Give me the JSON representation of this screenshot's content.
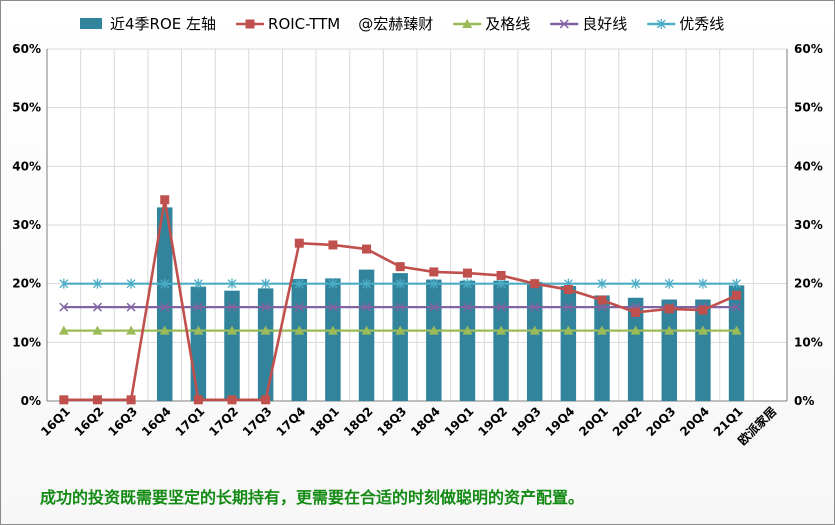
{
  "chart_data": {
    "type": "bar",
    "categories": [
      "16Q1",
      "16Q2",
      "16Q3",
      "16Q4",
      "17Q1",
      "17Q2",
      "17Q3",
      "17Q4",
      "18Q1",
      "18Q2",
      "18Q3",
      "18Q4",
      "19Q1",
      "19Q2",
      "19Q3",
      "19Q4",
      "20Q1",
      "20Q2",
      "20Q3",
      "20Q4",
      "21Q1",
      "欧派家居"
    ],
    "series": [
      {
        "name": "近4季ROE 左轴",
        "type": "bar",
        "color": "#31849b",
        "values": [
          null,
          null,
          null,
          33.0,
          19.5,
          18.8,
          19.2,
          20.8,
          20.9,
          22.4,
          21.8,
          20.7,
          20.5,
          20.5,
          20.3,
          19.6,
          18.0,
          17.6,
          17.3,
          17.3,
          19.7,
          null
        ]
      },
      {
        "name": "ROIC-TTM",
        "type": "line",
        "marker": "square",
        "color": "#c0504d",
        "values": [
          0.2,
          0.2,
          0.2,
          34.3,
          0.2,
          0.2,
          0.2,
          26.9,
          26.6,
          25.9,
          22.9,
          22.0,
          21.8,
          21.4,
          20.0,
          19.0,
          17.2,
          15.1,
          15.7,
          15.5,
          18.0,
          null
        ]
      },
      {
        "name": "及格线",
        "type": "line",
        "marker": "triangle",
        "color": "#9bbb59",
        "values": [
          12,
          12,
          12,
          12,
          12,
          12,
          12,
          12,
          12,
          12,
          12,
          12,
          12,
          12,
          12,
          12,
          12,
          12,
          12,
          12,
          12,
          null
        ]
      },
      {
        "name": "良好线",
        "type": "line",
        "marker": "x",
        "color": "#8064a2",
        "values": [
          16,
          16,
          16,
          16,
          16,
          16,
          16,
          16,
          16,
          16,
          16,
          16,
          16,
          16,
          16,
          16,
          16,
          16,
          16,
          16,
          16,
          null
        ]
      },
      {
        "name": "优秀线",
        "type": "line",
        "marker": "star",
        "color": "#4bacc6",
        "values": [
          20,
          20,
          20,
          20,
          20,
          20,
          20,
          20,
          20,
          20,
          20,
          20,
          20,
          20,
          20,
          20,
          20,
          20,
          20,
          20,
          20,
          null
        ]
      }
    ],
    "watermark_legend": "@宏赫臻财",
    "y_ticks": [
      "0%",
      "10%",
      "20%",
      "30%",
      "40%",
      "50%",
      "60%"
    ],
    "ylim": [
      0,
      60
    ],
    "grid": true,
    "legend_position": "top"
  },
  "footer_text": "成功的投资既需要坚定的长期持有，更需要在合适的时刻做聪明的资产配置。"
}
